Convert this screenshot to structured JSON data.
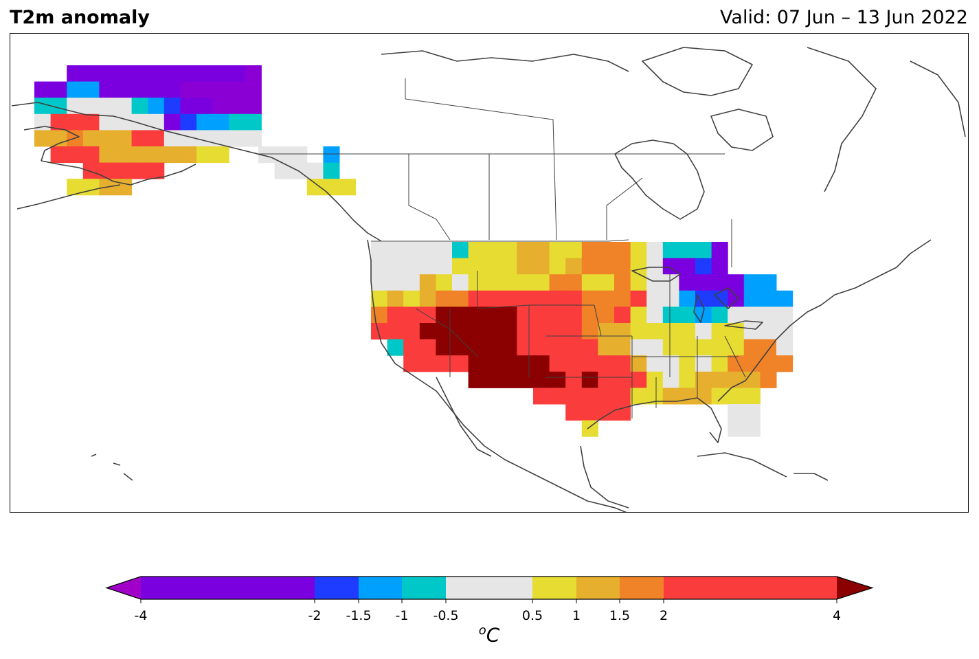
{
  "header": {
    "title": "T2m anomaly",
    "valid": "Valid: 07 Jun – 13 Jun 2022"
  },
  "colorbar": {
    "units_base": "C",
    "units_sup": "o",
    "ticks": [
      "-4",
      "-2",
      "-1.5",
      "-1",
      "-0.5",
      "0.5",
      "1",
      "1.5",
      "2",
      "4"
    ],
    "bins": [
      {
        "from": -4,
        "to": -2,
        "color": "#7a00e0"
      },
      {
        "from": -2,
        "to": -1.5,
        "color": "#1e3cff"
      },
      {
        "from": -1.5,
        "to": -1,
        "color": "#00a0ff"
      },
      {
        "from": -1,
        "to": -0.5,
        "color": "#00c8c8"
      },
      {
        "from": -0.5,
        "to": 0.5,
        "color": "#e6e6e6"
      },
      {
        "from": 0.5,
        "to": 1,
        "color": "#e6dc32"
      },
      {
        "from": 1,
        "to": 1.5,
        "color": "#e6af2d"
      },
      {
        "from": 1.5,
        "to": 2,
        "color": "#f08228"
      },
      {
        "from": 2,
        "to": 4,
        "color": "#fa3c3c"
      }
    ],
    "extend_low_color": "#a000c8",
    "extend_high_color": "#8b0000"
  },
  "map": {
    "region": "North America",
    "palette_key": {
      "P": "#8a00d4",
      "V": "#7a00e0",
      "B": "#1e3cff",
      "S": "#00a0ff",
      "C": "#00c8c8",
      "G": "#e6e6e6",
      "Y": "#e6dc32",
      "O": "#e6af2d",
      "N": "#f08228",
      "R": "#fa3c3c",
      "D": "#8b0000"
    }
  }
}
